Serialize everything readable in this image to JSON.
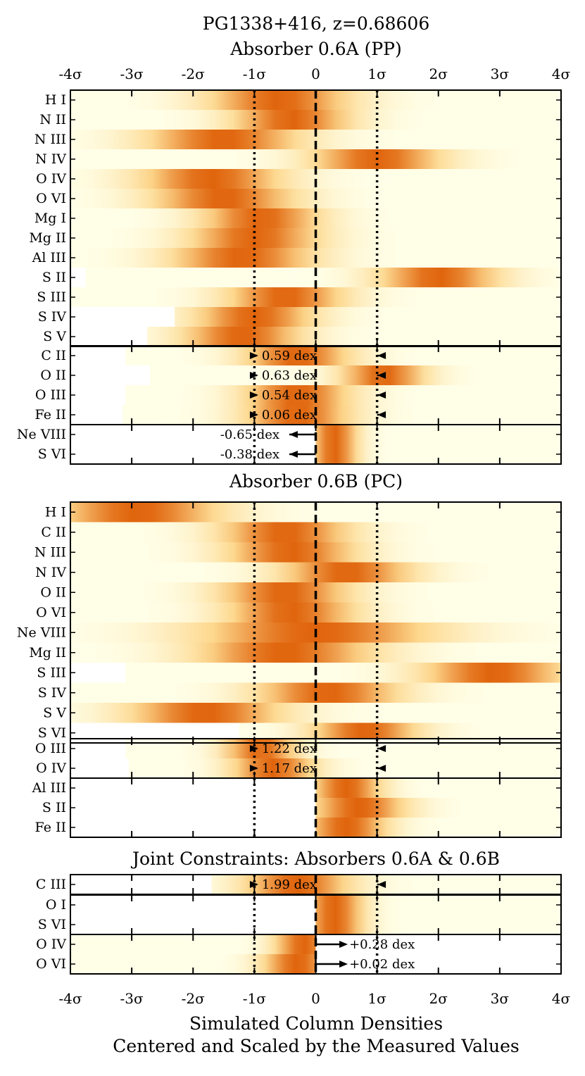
{
  "chart_data": {
    "type": "heatmap",
    "title": {
      "line1": "PG1338+416, z=0.68606",
      "line2": "Absorber 0.6A (PP)"
    },
    "x_ticks": [
      "-4σ",
      "-3σ",
      "-2σ",
      "-1σ",
      "0",
      "1σ",
      "2σ",
      "3σ",
      "4σ"
    ],
    "x_range_sigma": [
      -4,
      4
    ],
    "xlabel": {
      "line1": "Simulated Column Densities",
      "line2": "Centered and Scaled by the Measured Values"
    },
    "colors": {
      "low": "#ffffe8",
      "mid": "#fdd78c",
      "high": "#e0640c"
    },
    "panels": [
      {
        "heading": "Absorber 0.6A (PP)",
        "groups": [
          {
            "rows": [
              {
                "ion": "H I",
                "start": -4,
                "end": 4,
                "peak": -0.6,
                "width": 1.2
              },
              {
                "ion": "N II",
                "start": -4,
                "end": 4,
                "peak": -0.4,
                "width": 1.0
              },
              {
                "ion": "N III",
                "start": -4,
                "end": 4,
                "peak": -1.5,
                "width": 1.3
              },
              {
                "ion": "N IV",
                "start": -4,
                "end": 4,
                "peak": 1.0,
                "width": 1.1
              },
              {
                "ion": "O IV",
                "start": -4,
                "end": 4,
                "peak": -1.7,
                "width": 1.2
              },
              {
                "ion": "O VI",
                "start": -4,
                "end": 4,
                "peak": -1.5,
                "width": 1.2
              },
              {
                "ion": "Mg I",
                "start": -4,
                "end": 4,
                "peak": -0.9,
                "width": 1.0
              },
              {
                "ion": "Mg II",
                "start": -4,
                "end": 4,
                "peak": -1.0,
                "width": 1.1
              },
              {
                "ion": "Al III",
                "start": -4,
                "end": 4,
                "peak": -1.2,
                "width": 1.2
              },
              {
                "ion": "S II",
                "start": -3.75,
                "end": 4,
                "peak": 2.0,
                "width": 1.0
              },
              {
                "ion": "S III",
                "start": -4,
                "end": 4,
                "peak": -0.5,
                "width": 1.0
              },
              {
                "ion": "S IV",
                "start": -2.3,
                "end": 4,
                "peak": -1.0,
                "width": 1.0
              },
              {
                "ion": "S V",
                "start": -2.75,
                "end": 4,
                "peak": -1.2,
                "width": 1.0
              }
            ]
          },
          {
            "rows": [
              {
                "ion": "C II",
                "start": -3.1,
                "end": 4,
                "peak": -0.3,
                "width": 0.9
              },
              {
                "ion": "O II",
                "start": -2.7,
                "end": 4,
                "peak": 1.1,
                "width": 0.7
              },
              {
                "ion": "O III",
                "start": -3.1,
                "end": 4,
                "peak": -0.3,
                "width": 0.9
              },
              {
                "ion": "Fe II",
                "start": -3.15,
                "end": 4,
                "peak": -0.3,
                "width": 0.9
              }
            ],
            "annotations": [
              {
                "text": "0.59 dex",
                "arrow": "inward"
              },
              {
                "text": "0.63 dex",
                "arrow": "inward"
              },
              {
                "text": "0.54 dex",
                "arrow": "inward"
              },
              {
                "text": "0.06 dex",
                "arrow": "inward"
              }
            ]
          },
          {
            "rows": [
              {
                "ion": "Ne VIII",
                "start": 0,
                "end": 4,
                "peak": 0.3,
                "width": 0.4
              },
              {
                "ion": "S VI",
                "start": 0,
                "end": 4,
                "peak": 0.3,
                "width": 0.4
              }
            ],
            "annotations": [
              {
                "text": "-0.65 dex",
                "arrow": "left"
              },
              {
                "text": "-0.38 dex",
                "arrow": "left"
              }
            ]
          }
        ]
      },
      {
        "heading": "Absorber 0.6B (PC)",
        "groups": [
          {
            "rows": [
              {
                "ion": "H I",
                "start": -4,
                "end": 4,
                "peak": -2.9,
                "width": 1.4
              },
              {
                "ion": "C II",
                "start": -4,
                "end": 4,
                "peak": -0.5,
                "width": 1.1
              },
              {
                "ion": "N III",
                "start": -4,
                "end": 4,
                "peak": -0.4,
                "width": 1.1
              },
              {
                "ion": "N IV",
                "start": -4,
                "end": 4,
                "peak": 0.5,
                "width": 1.1
              },
              {
                "ion": "O II",
                "start": -4,
                "end": 4,
                "peak": -0.5,
                "width": 1.1
              },
              {
                "ion": "O VI",
                "start": -4,
                "end": 4,
                "peak": -0.4,
                "width": 1.1
              },
              {
                "ion": "Ne VIII",
                "start": -4,
                "end": 4,
                "peak": 0.0,
                "width": 2.0
              },
              {
                "ion": "Mg II",
                "start": -4,
                "end": 4,
                "peak": -0.5,
                "width": 1.5
              },
              {
                "ion": "S III",
                "start": -3.1,
                "end": 4,
                "peak": 2.9,
                "width": 1.2
              },
              {
                "ion": "S IV",
                "start": -4,
                "end": 4,
                "peak": 0.2,
                "width": 1.2
              },
              {
                "ion": "S V",
                "start": -4,
                "end": 4,
                "peak": -1.8,
                "width": 1.3
              },
              {
                "ion": "S VI",
                "start": -1.25,
                "end": 4,
                "peak": 0.8,
                "width": 0.9
              }
            ]
          },
          {
            "rows": [
              {
                "ion": "O III",
                "start": -3.1,
                "end": 4,
                "peak": -0.9,
                "width": 0.6
              },
              {
                "ion": "O IV",
                "start": -3.05,
                "end": 4,
                "peak": -0.7,
                "width": 0.7
              }
            ],
            "annotations": [
              {
                "text": "1.22 dex",
                "arrow": "inward"
              },
              {
                "text": "1.17 dex",
                "arrow": "inward"
              }
            ]
          },
          {
            "rows": [
              {
                "ion": "Al III",
                "start": 0,
                "end": 4,
                "peak": 0.5,
                "width": 0.6
              },
              {
                "ion": "S II",
                "start": 0,
                "end": 4,
                "peak": 0.7,
                "width": 0.8
              },
              {
                "ion": "Fe II",
                "start": 0,
                "end": 4,
                "peak": 0.5,
                "width": 0.7
              }
            ]
          }
        ]
      },
      {
        "heading": "Joint Constraints: Absorbers 0.6A & 0.6B",
        "groups": [
          {
            "rows": [
              {
                "ion": "C III",
                "start": -1.7,
                "end": 4,
                "peak": -0.3,
                "width": 0.9
              }
            ],
            "annotations": [
              {
                "text": "1.99 dex",
                "arrow": "inward"
              }
            ]
          },
          {
            "rows": [
              {
                "ion": "O I",
                "start": 0,
                "end": 4,
                "peak": 0.3,
                "width": 0.5
              },
              {
                "ion": "S VI",
                "start": 0,
                "end": 4,
                "peak": 0.3,
                "width": 0.5
              }
            ]
          },
          {
            "rows": [
              {
                "ion": "O IV",
                "start": -4,
                "end": 0,
                "peak": -0.2,
                "width": 0.5
              },
              {
                "ion": "O VI",
                "start": -4,
                "end": 0,
                "peak": -0.3,
                "width": 0.6
              }
            ],
            "annotations": [
              {
                "text": "+0.28 dex",
                "arrow": "right"
              },
              {
                "text": "+0.02 dex",
                "arrow": "right"
              }
            ]
          }
        ]
      }
    ]
  }
}
